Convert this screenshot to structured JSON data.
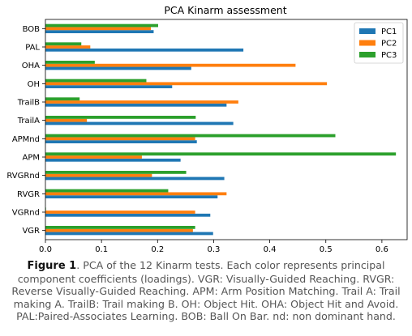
{
  "chart_data": {
    "type": "bar",
    "orientation": "horizontal",
    "title": "PCA Kinarm assessment",
    "categories": [
      "BOB",
      "PAL",
      "OHA",
      "OH",
      "TrailB",
      "TrailA",
      "APMnd",
      "APM",
      "RVGRnd",
      "RVGR",
      "VGRnd",
      "VGR"
    ],
    "series": [
      {
        "name": "PC1",
        "color": "#1f77b4",
        "values": [
          0.193,
          0.353,
          0.26,
          0.226,
          0.323,
          0.335,
          0.27,
          0.241,
          0.319,
          0.307,
          0.294,
          0.299
        ]
      },
      {
        "name": "PC2",
        "color": "#ff7f0e",
        "values": [
          0.188,
          0.08,
          0.446,
          0.502,
          0.344,
          0.074,
          0.267,
          0.172,
          0.19,
          0.323,
          0.267,
          0.263
        ]
      },
      {
        "name": "PC3",
        "color": "#2ca02c",
        "values": [
          0.201,
          0.064,
          0.088,
          0.18,
          0.061,
          0.268,
          0.517,
          0.625,
          0.251,
          0.219,
          0.001,
          0.267
        ]
      }
    ],
    "xlim": [
      0,
      0.645
    ],
    "xticks": [
      "0.0",
      "0.1",
      "0.2",
      "0.3",
      "0.4",
      "0.5",
      "0.6"
    ],
    "xtick_values": [
      0,
      0.1,
      0.2,
      0.3,
      0.4,
      0.5,
      0.6
    ],
    "xlabel": "",
    "ylabel": "",
    "grid": false,
    "legend_position": "top-right"
  },
  "caption": {
    "label": "Figure 1",
    "text": ". PCA of the 12 Kinarm tests. Each color represents principal component coefficients (loadings). VGR: Visually-Guided Reaching. RVGR: Reverse Visually-Guided Reaching.  APM: Arm Position Matching. Trail A: Trail making A. TrailB: Trail making B. OH: Object Hit. OHA: Object Hit and Avoid. PAL:Paired-Associates Learning. BOB: Ball On Bar. nd: non dominant hand."
  }
}
